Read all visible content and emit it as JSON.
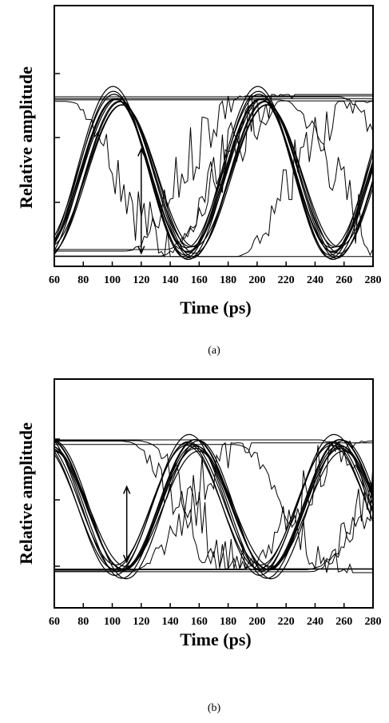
{
  "chart_data": [
    {
      "type": "line",
      "panel": "a",
      "title": "",
      "caption": "(a)",
      "xlabel": "Time (ps)",
      "ylabel": "Relative amplitude",
      "xlim": [
        60,
        280
      ],
      "xticks": [
        60,
        80,
        100,
        120,
        140,
        160,
        180,
        200,
        220,
        240,
        260,
        280
      ],
      "ylim": [
        0,
        1
      ],
      "grid": false,
      "legend": "none",
      "eye": {
        "period": 100,
        "first_peak": 105,
        "high": 0.645,
        "low": 0.05,
        "wave_count": 11,
        "transition_count": 8
      },
      "arrow": {
        "x": 120,
        "y_from": 0.05,
        "y_to": 0.45
      }
    },
    {
      "type": "line",
      "panel": "b",
      "title": "",
      "caption": "(b)",
      "xlabel": "Time (ps)",
      "ylabel": "Relative amplitude",
      "xlim": [
        60,
        280
      ],
      "xticks": [
        60,
        80,
        100,
        120,
        140,
        160,
        180,
        200,
        220,
        240,
        260,
        280
      ],
      "ylim": [
        0,
        1
      ],
      "grid": false,
      "legend": "none",
      "eye": {
        "period": 100,
        "first_peak": 55,
        "high": 0.72,
        "low": 0.16,
        "wave_count": 11,
        "transition_count": 8
      },
      "arrow": {
        "x": 110,
        "y_from": 0.2,
        "y_to": 0.53
      }
    }
  ]
}
